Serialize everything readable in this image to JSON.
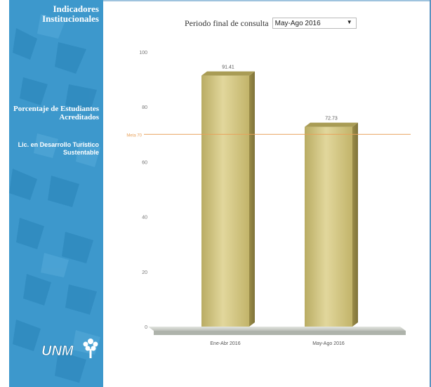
{
  "sidebar": {
    "title": "Indicadores Institucionales",
    "metric": "Porcentaje de Estudiantes Acreditados",
    "program": "Lic. en Desarrollo Turístico Sustentable",
    "logo_text": "UNM"
  },
  "period": {
    "label": "Periodo final de consulta",
    "selected": "May-Ago 2016"
  },
  "chart_data": {
    "type": "bar",
    "categories": [
      "Ene-Abr 2016",
      "May-Ago 2016"
    ],
    "values": [
      91.41,
      72.73
    ],
    "value_labels": [
      "91.41",
      "72.73"
    ],
    "ylim": [
      0,
      100
    ],
    "yticks": [
      0,
      20,
      40,
      60,
      80,
      100
    ],
    "goal": {
      "label": "Meta 70",
      "value": 70
    },
    "bar_color": "#cfc27e",
    "goal_color": "#e8a15a",
    "grid": false,
    "legend": "none"
  },
  "colors": {
    "sidebar": "#3d98cc",
    "accent": "#e8a15a"
  }
}
